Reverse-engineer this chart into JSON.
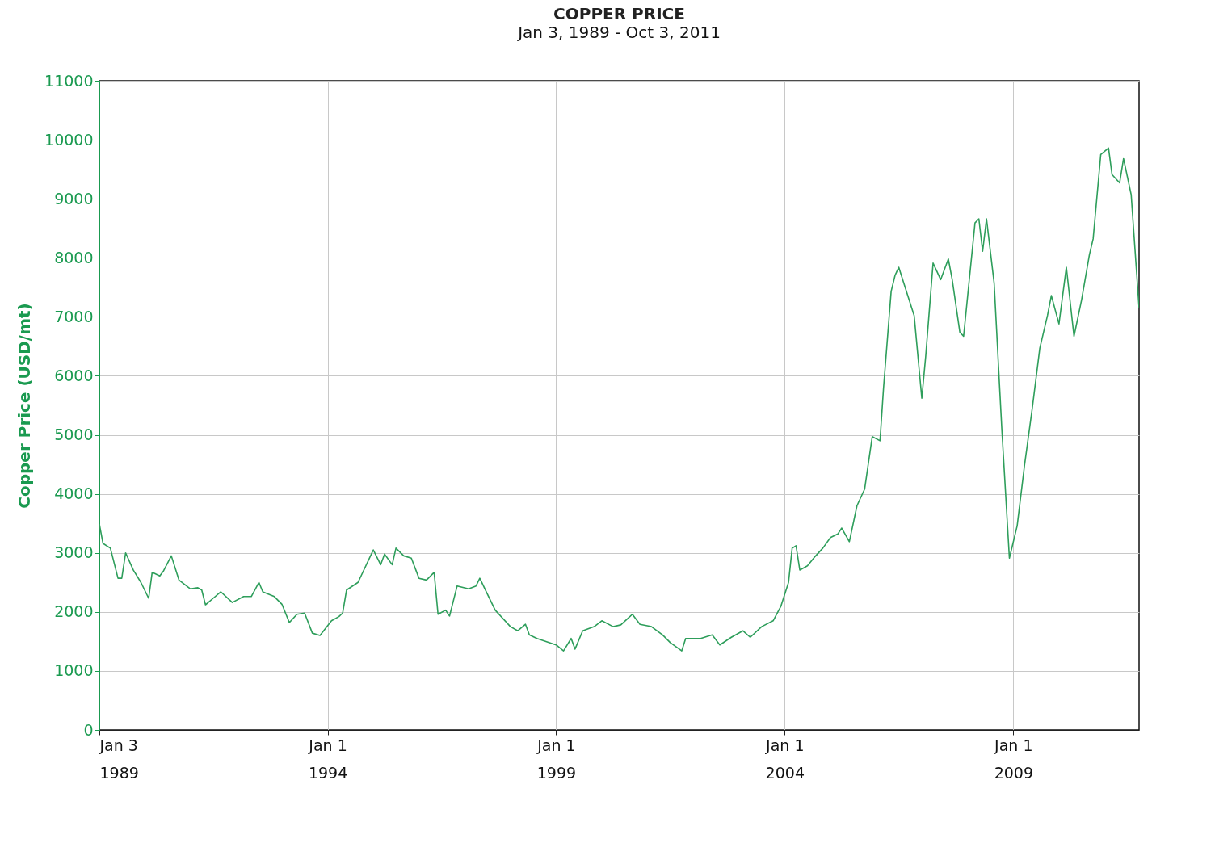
{
  "chart_data": {
    "type": "line",
    "title": "COPPER PRICE",
    "subtitle": "Jan 3, 1989 - Oct 3, 2011",
    "ylabel": "Copper Price (USD/mt)",
    "x": [
      "1989-01-03",
      "1989-02",
      "1989-04",
      "1989-06",
      "1989-07",
      "1989-08",
      "1989-10",
      "1989-12",
      "1990-02",
      "1990-03",
      "1990-05",
      "1990-06",
      "1990-08",
      "1990-10",
      "1991-01",
      "1991-03",
      "1991-04",
      "1991-05",
      "1991-07",
      "1991-09",
      "1991-12",
      "1992-03",
      "1992-05",
      "1992-07",
      "1992-08",
      "1992-11",
      "1993-01",
      "1993-03",
      "1993-05",
      "1993-07",
      "1993-09",
      "1993-11",
      "1994-02",
      "1994-04",
      "1994-05",
      "1994-06",
      "1994-09",
      "1995-01",
      "1995-03",
      "1995-04",
      "1995-06",
      "1995-07",
      "1995-09",
      "1995-11",
      "1996-01",
      "1996-03",
      "1996-05",
      "1996-06",
      "1996-08",
      "1996-09",
      "1996-11",
      "1997-02",
      "1997-04",
      "1997-05",
      "1997-07",
      "1997-09",
      "1998-01",
      "1998-03",
      "1998-05",
      "1998-06",
      "1998-08",
      "1999-01",
      "1999-03",
      "1999-05",
      "1999-06",
      "1999-08",
      "1999-11",
      "2000-01",
      "2000-04",
      "2000-06",
      "2000-09",
      "2000-11",
      "2001-02",
      "2001-05",
      "2001-07",
      "2001-10",
      "2001-11",
      "2002-03",
      "2002-06",
      "2002-08",
      "2002-11",
      "2003-02",
      "2003-04",
      "2003-07",
      "2003-10",
      "2003-12",
      "2004-02",
      "2004-03",
      "2004-04",
      "2004-05",
      "2004-07",
      "2004-09",
      "2004-11",
      "2005-01",
      "2005-03",
      "2005-04",
      "2005-06",
      "2005-08",
      "2005-10",
      "2005-12",
      "2006-02",
      "2006-03",
      "2006-05",
      "2006-06",
      "2006-07",
      "2006-08",
      "2006-11",
      "2007-01",
      "2007-02",
      "2007-04",
      "2007-06",
      "2007-08",
      "2007-09",
      "2007-11",
      "2007-12",
      "2008-03",
      "2008-04",
      "2008-05",
      "2008-06",
      "2008-08",
      "2008-10",
      "2008-12",
      "2009-02",
      "2009-04",
      "2009-06",
      "2009-08",
      "2009-10",
      "2009-11",
      "2010-01",
      "2010-03",
      "2010-05",
      "2010-07",
      "2010-09",
      "2010-10",
      "2010-12",
      "2011-02",
      "2011-03",
      "2011-05",
      "2011-06",
      "2011-08",
      "2011-10-03"
    ],
    "series": [
      {
        "color": "#2e9e5b",
        "values": [
          3490,
          3160,
          3080,
          2570,
          2570,
          3000,
          2710,
          2500,
          2230,
          2670,
          2610,
          2700,
          2950,
          2540,
          2390,
          2410,
          2370,
          2120,
          2230,
          2340,
          2160,
          2260,
          2260,
          2500,
          2340,
          2260,
          2130,
          1820,
          1960,
          1980,
          1640,
          1600,
          1850,
          1920,
          1980,
          2370,
          2500,
          3050,
          2800,
          2980,
          2800,
          3080,
          2950,
          2910,
          2570,
          2540,
          2670,
          1960,
          2030,
          1930,
          2440,
          2390,
          2440,
          2570,
          2300,
          2030,
          1750,
          1680,
          1790,
          1610,
          1550,
          1440,
          1340,
          1550,
          1370,
          1680,
          1750,
          1850,
          1750,
          1780,
          1960,
          1790,
          1750,
          1610,
          1480,
          1340,
          1550,
          1550,
          1610,
          1440,
          1570,
          1680,
          1570,
          1750,
          1850,
          2090,
          2500,
          3080,
          3120,
          2710,
          2780,
          2940,
          3080,
          3260,
          3320,
          3420,
          3190,
          3800,
          4080,
          4970,
          4900,
          5790,
          7430,
          7700,
          7840,
          7630,
          7020,
          5620,
          6330,
          7910,
          7630,
          7980,
          7630,
          6740,
          6670,
          8590,
          8660,
          8110,
          8660,
          7570,
          5110,
          2910,
          3460,
          4490,
          5440,
          6470,
          7020,
          7360,
          6880,
          7840,
          6670,
          7290,
          8050,
          8320,
          9750,
          9860,
          9410,
          9270,
          9680,
          9070,
          7150
        ]
      }
    ],
    "xlim": [
      "1989-01-03",
      "2011-10-03"
    ],
    "xticks": [
      {
        "value": "1989-01-03",
        "label": "Jan 3\n1989"
      },
      {
        "value": "1994-01-01",
        "label": "Jan 1\n1994"
      },
      {
        "value": "1999-01-01",
        "label": "Jan 1\n1999"
      },
      {
        "value": "2004-01-01",
        "label": "Jan 1\n2004"
      },
      {
        "value": "2009-01-01",
        "label": "Jan 1\n2009"
      }
    ],
    "ylim": [
      0,
      11000
    ],
    "yticks": [
      0,
      1000,
      2000,
      3000,
      4000,
      5000,
      6000,
      7000,
      8000,
      9000,
      10000,
      11000
    ],
    "grid": true,
    "marker": "none",
    "line_style": "solid"
  }
}
